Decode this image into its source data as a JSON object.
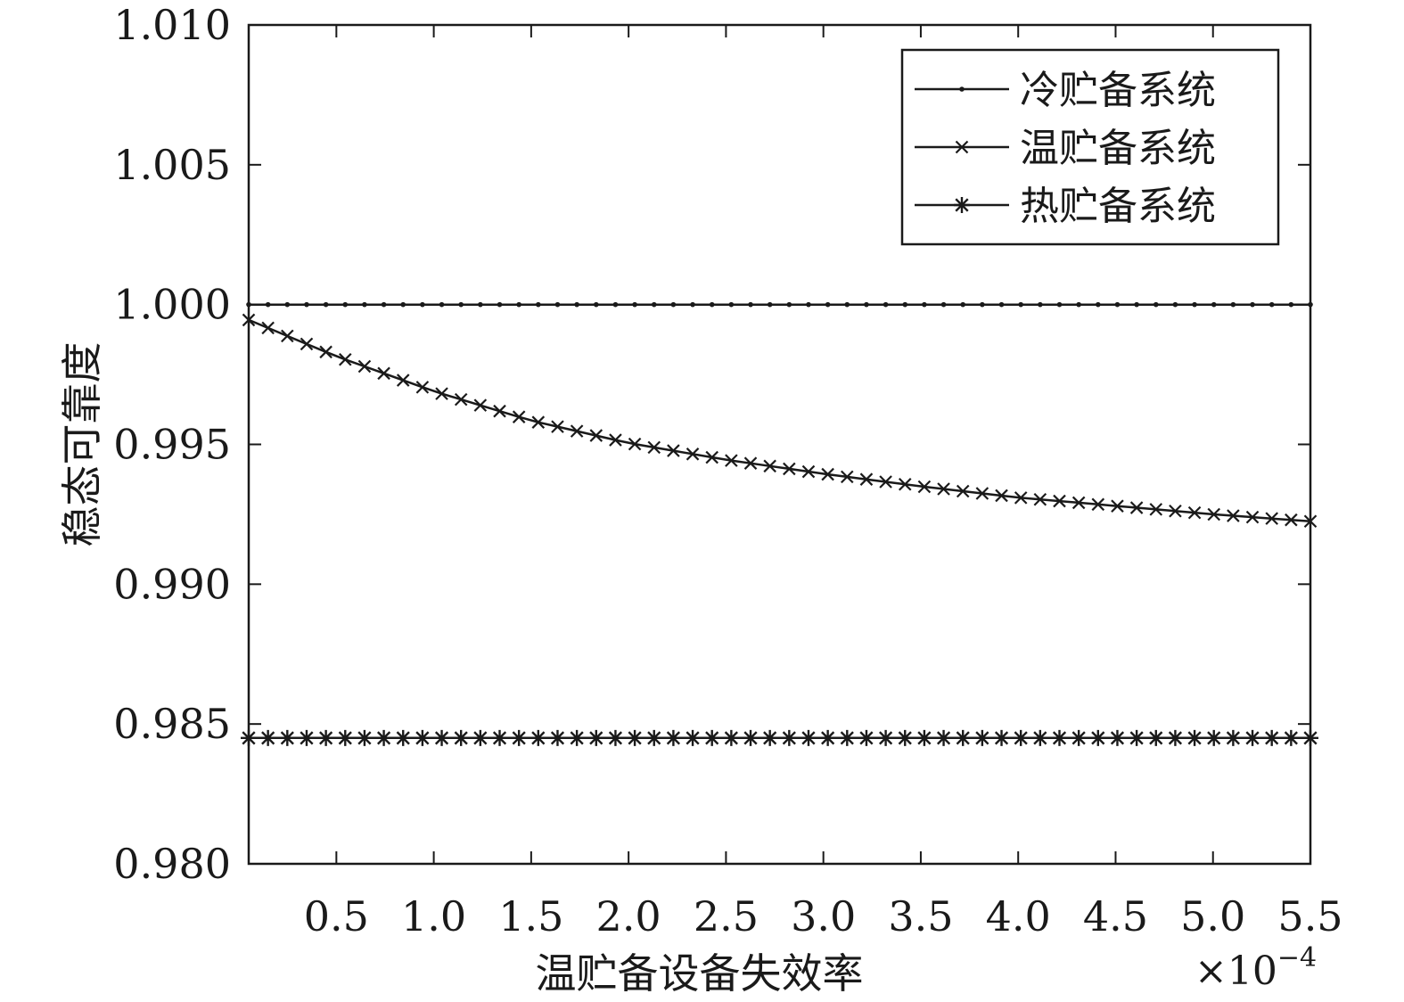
{
  "chart_data": {
    "type": "line",
    "xlabel": "温贮备设备失效率",
    "ylabel": "稳态可靠度",
    "x_multiplier": "×10",
    "x_multiplier_exp": "−4",
    "xlim": [
      0.05,
      5.5
    ],
    "ylim": [
      0.98,
      1.01
    ],
    "x_ticks": [
      0.5,
      1.0,
      1.5,
      2.0,
      2.5,
      3.0,
      3.5,
      4.0,
      4.5,
      5.0,
      5.5
    ],
    "x_tick_labels": [
      "0.5",
      "1.0",
      "1.5",
      "2.0",
      "2.5",
      "3.0",
      "3.5",
      "4.0",
      "4.5",
      "5.0",
      "5.5"
    ],
    "y_ticks": [
      0.98,
      0.985,
      0.99,
      0.995,
      1.0,
      1.005,
      1.01
    ],
    "y_tick_labels": [
      "0.980",
      "0.985",
      "0.990",
      "0.995",
      "1.000",
      "1.005",
      "1.010"
    ],
    "legend_position": "top-right",
    "grid": false,
    "series": [
      {
        "name": "冷贮备系统",
        "marker": "dot",
        "x": [
          0.05,
          0.5,
          1.0,
          1.5,
          2.0,
          2.5,
          3.0,
          3.5,
          4.0,
          4.5,
          5.0,
          5.5
        ],
        "y": [
          1.0,
          1.0,
          1.0,
          1.0,
          1.0,
          1.0,
          1.0,
          1.0,
          1.0,
          1.0,
          1.0,
          1.0
        ]
      },
      {
        "name": "温贮备系统",
        "marker": "x",
        "x": [
          0.05,
          0.5,
          1.0,
          1.5,
          2.0,
          2.5,
          3.0,
          3.5,
          4.0,
          4.5,
          5.0,
          5.5
        ],
        "y": [
          0.99945,
          0.99815,
          0.9969,
          0.99585,
          0.99505,
          0.99445,
          0.99395,
          0.9935,
          0.9931,
          0.9928,
          0.9925,
          0.99225
        ]
      },
      {
        "name": "热贮备系统",
        "marker": "asterisk",
        "x": [
          0.05,
          0.5,
          1.0,
          1.5,
          2.0,
          2.5,
          3.0,
          3.5,
          4.0,
          4.5,
          5.0,
          5.5
        ],
        "y": [
          0.9845,
          0.9845,
          0.9845,
          0.9845,
          0.9845,
          0.9845,
          0.9845,
          0.9845,
          0.9845,
          0.9845,
          0.9845,
          0.9845
        ]
      }
    ]
  }
}
